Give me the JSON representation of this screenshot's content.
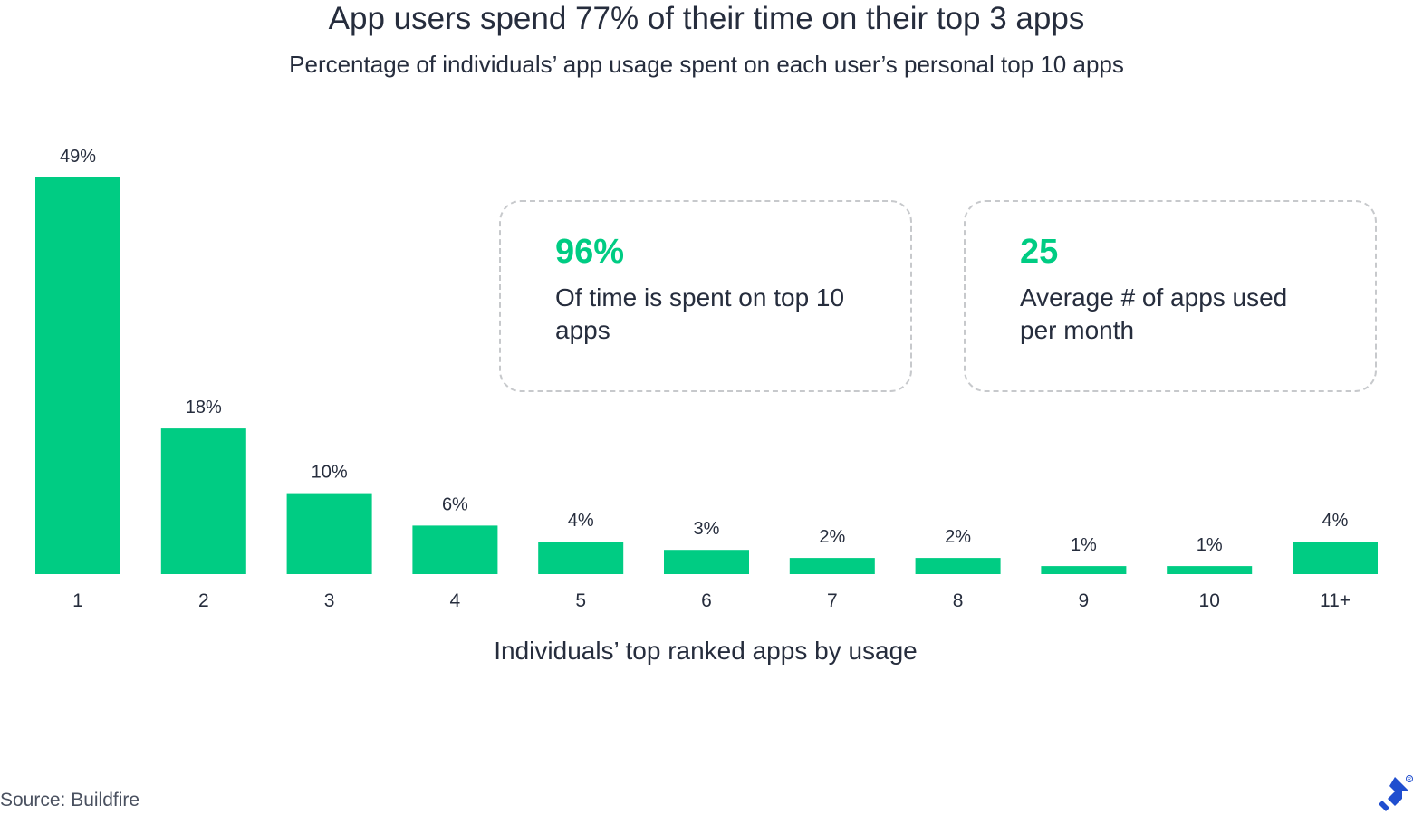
{
  "header": {
    "title": "App users spend 77% of their time on their top 3 apps",
    "subtitle": "Percentage of individuals’ app usage spent on each user’s personal top 10 apps"
  },
  "stats": [
    {
      "value": "96%",
      "label": "Of time is spent on top 10 apps"
    },
    {
      "value": "25",
      "label": "Average # of apps used per month"
    }
  ],
  "footer": {
    "source": "Source: Buildfire"
  },
  "colors": {
    "bar": "#00cc83",
    "text": "#262d3d",
    "accent": "#00cc83",
    "logo": "#204ecf"
  },
  "logo": {
    "icon": "toptal-logo-icon"
  },
  "chart_data": {
    "type": "bar",
    "title": "App users spend 77% of their time on their top 3 apps",
    "subtitle": "Percentage of individuals’ app usage spent on each user’s personal top 10 apps",
    "xlabel": "Individuals’ top ranked apps by usage",
    "ylabel": "",
    "categories": [
      "1",
      "2",
      "3",
      "4",
      "5",
      "6",
      "7",
      "8",
      "9",
      "10",
      "11+"
    ],
    "values": [
      49,
      18,
      10,
      6,
      4,
      3,
      2,
      2,
      1,
      1,
      4
    ],
    "data_labels": [
      "49%",
      "18%",
      "10%",
      "6%",
      "4%",
      "3%",
      "2%",
      "2%",
      "1%",
      "1%",
      "4%"
    ],
    "ylim": [
      0,
      49
    ],
    "grid": false,
    "legend": "none"
  }
}
